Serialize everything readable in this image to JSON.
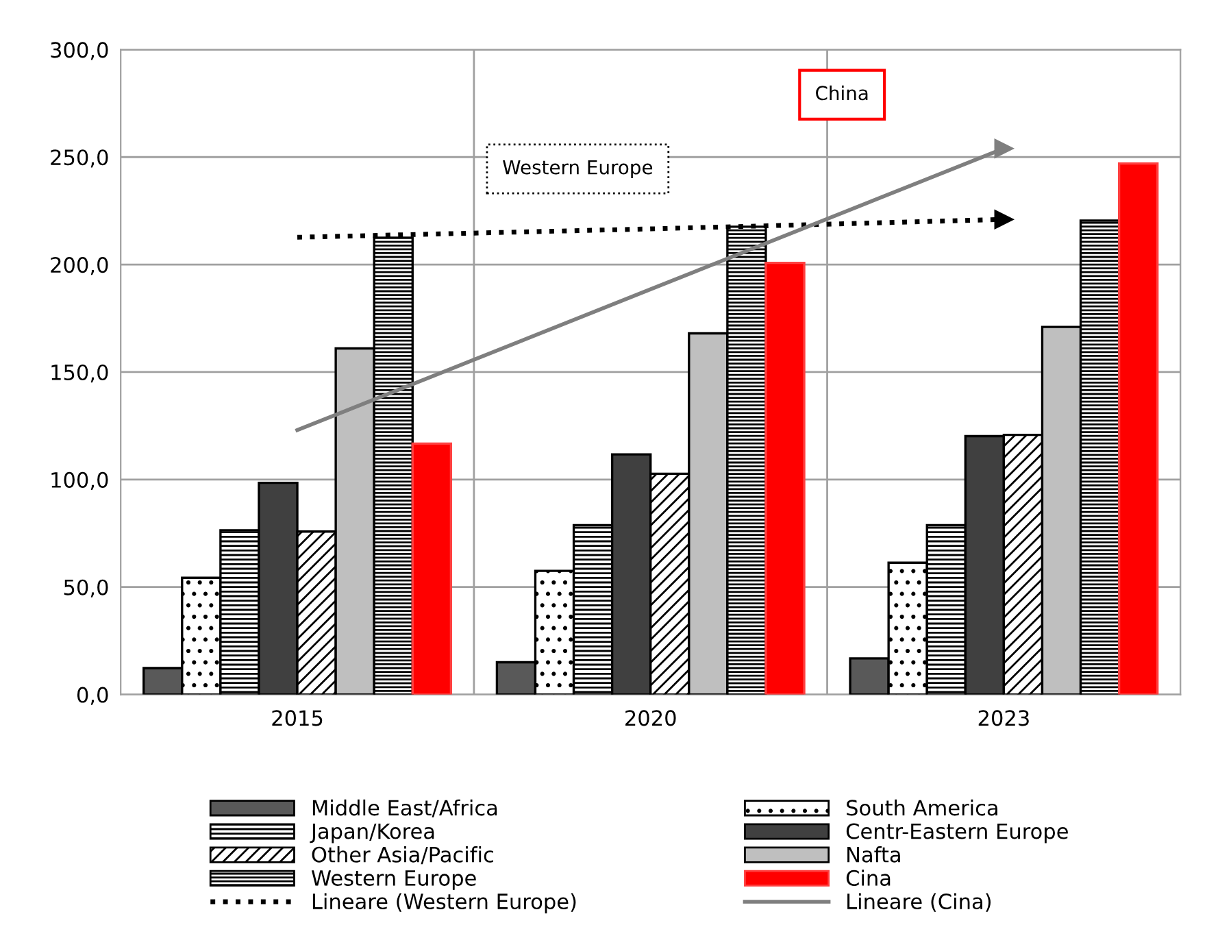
{
  "chart_data": {
    "type": "bar",
    "categories": [
      "2015",
      "2020",
      "2023"
    ],
    "series": [
      {
        "name": "Middle East/Africa",
        "color": "#595959",
        "values": [
          12.3,
          15.0,
          16.8
        ]
      },
      {
        "name": "South America",
        "color": "#000000",
        "values": [
          54.3,
          57.5,
          61.3
        ]
      },
      {
        "name": "Japan/Korea",
        "color": "#000000",
        "values": [
          76.4,
          78.8,
          78.8
        ]
      },
      {
        "name": "Centr-Eastern Europe",
        "color": "#404040",
        "values": [
          98.5,
          111.7,
          120.2
        ]
      },
      {
        "name": "Other Asia/Pacific",
        "color": "#000000",
        "values": [
          75.8,
          102.7,
          120.8
        ]
      },
      {
        "name": "Nafta",
        "color": "#bfbfbf",
        "values": [
          161.0,
          168.0,
          171.0
        ]
      },
      {
        "name": "Western Europe",
        "color": "#000000",
        "values": [
          212.5,
          217.6,
          220.5
        ]
      },
      {
        "name": "Cina",
        "color": "#ff0000",
        "values": [
          116.7,
          200.8,
          247.0
        ]
      },
      {
        "name": "Lineare (Western Europe)",
        "type": "line",
        "line_style": "dotted",
        "color": "#000000",
        "values": [
          212.7,
          216.6,
          221.0
        ]
      },
      {
        "name": "Lineare (Cina)",
        "type": "line",
        "line_style": "solid",
        "color": "#7f7f7f",
        "values": [
          123.0,
          188.5,
          254.0
        ]
      }
    ],
    "ylim": [
      0,
      300
    ],
    "yticks": [
      {
        "value": 0,
        "label": "0,0"
      },
      {
        "value": 50,
        "label": "50,0"
      },
      {
        "value": 100,
        "label": "100,0"
      },
      {
        "value": 150,
        "label": "150,0"
      },
      {
        "value": 200,
        "label": "200,0"
      },
      {
        "value": 250,
        "label": "250,0"
      },
      {
        "value": 300,
        "label": "300,0"
      }
    ],
    "grid": true,
    "legend": "bottom",
    "annotations": [
      "China",
      "Western Europe"
    ]
  }
}
